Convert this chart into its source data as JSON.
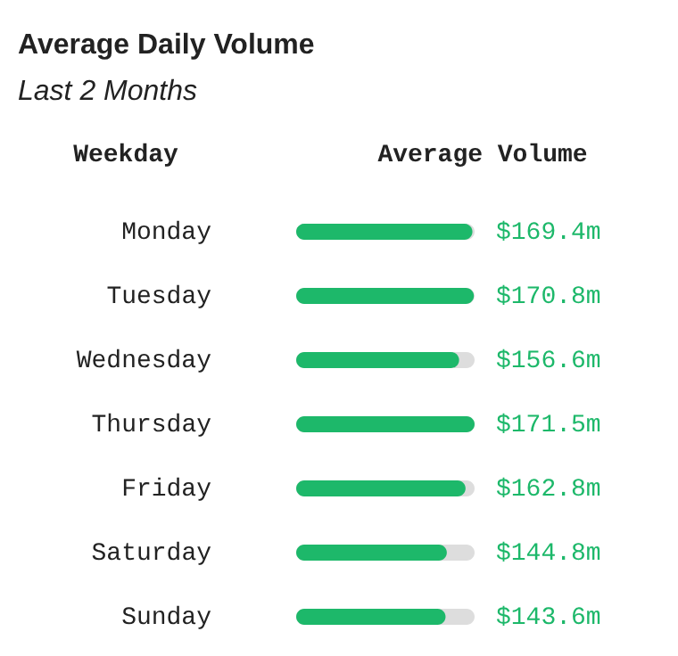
{
  "chart_data": {
    "type": "bar",
    "orientation": "horizontal",
    "title": "Average Daily Volume",
    "subtitle": "Last 2 Months",
    "ylabel": "Weekday",
    "xlabel": "Average Volume",
    "categories": [
      "Monday",
      "Tuesday",
      "Wednesday",
      "Thursday",
      "Friday",
      "Saturday",
      "Sunday"
    ],
    "values": [
      169.4,
      170.8,
      156.6,
      171.5,
      162.8,
      144.8,
      143.6
    ],
    "value_labels": [
      "$169.4m",
      "$170.8m",
      "$156.6m",
      "$171.5m",
      "$162.8m",
      "$144.8m",
      "$143.6m"
    ],
    "color": "#1db86a",
    "xlim": [
      0,
      171.5
    ],
    "tick_labels": "y"
  }
}
